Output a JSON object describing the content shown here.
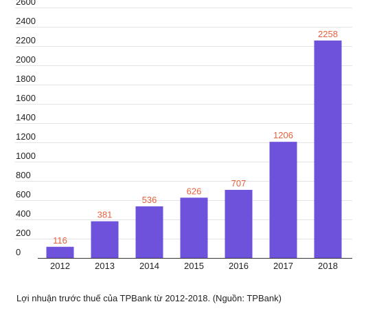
{
  "caption": "Lợi nhuận trước thuế của TPBank từ 2012-2018. (Nguồn: TPBank)",
  "chart_data": {
    "type": "bar",
    "categories": [
      "2012",
      "2013",
      "2014",
      "2015",
      "2016",
      "2017",
      "2018"
    ],
    "values": [
      116,
      381,
      536,
      626,
      707,
      1206,
      2258
    ],
    "data_labels": [
      "116",
      "381",
      "536",
      "626",
      "707",
      "1206",
      "2258"
    ],
    "y_ticks": [
      0,
      200,
      400,
      600,
      800,
      1000,
      1200,
      1400,
      1600,
      1800,
      2000,
      2200,
      2400,
      2600
    ],
    "ylim": [
      0,
      2600
    ],
    "grid": true,
    "legend": "none",
    "colors": {
      "bar": "#6e52dc",
      "data_label": "#e8613d",
      "grid": "#e3e3e3",
      "axis": "#333333",
      "text": "#222222"
    }
  }
}
